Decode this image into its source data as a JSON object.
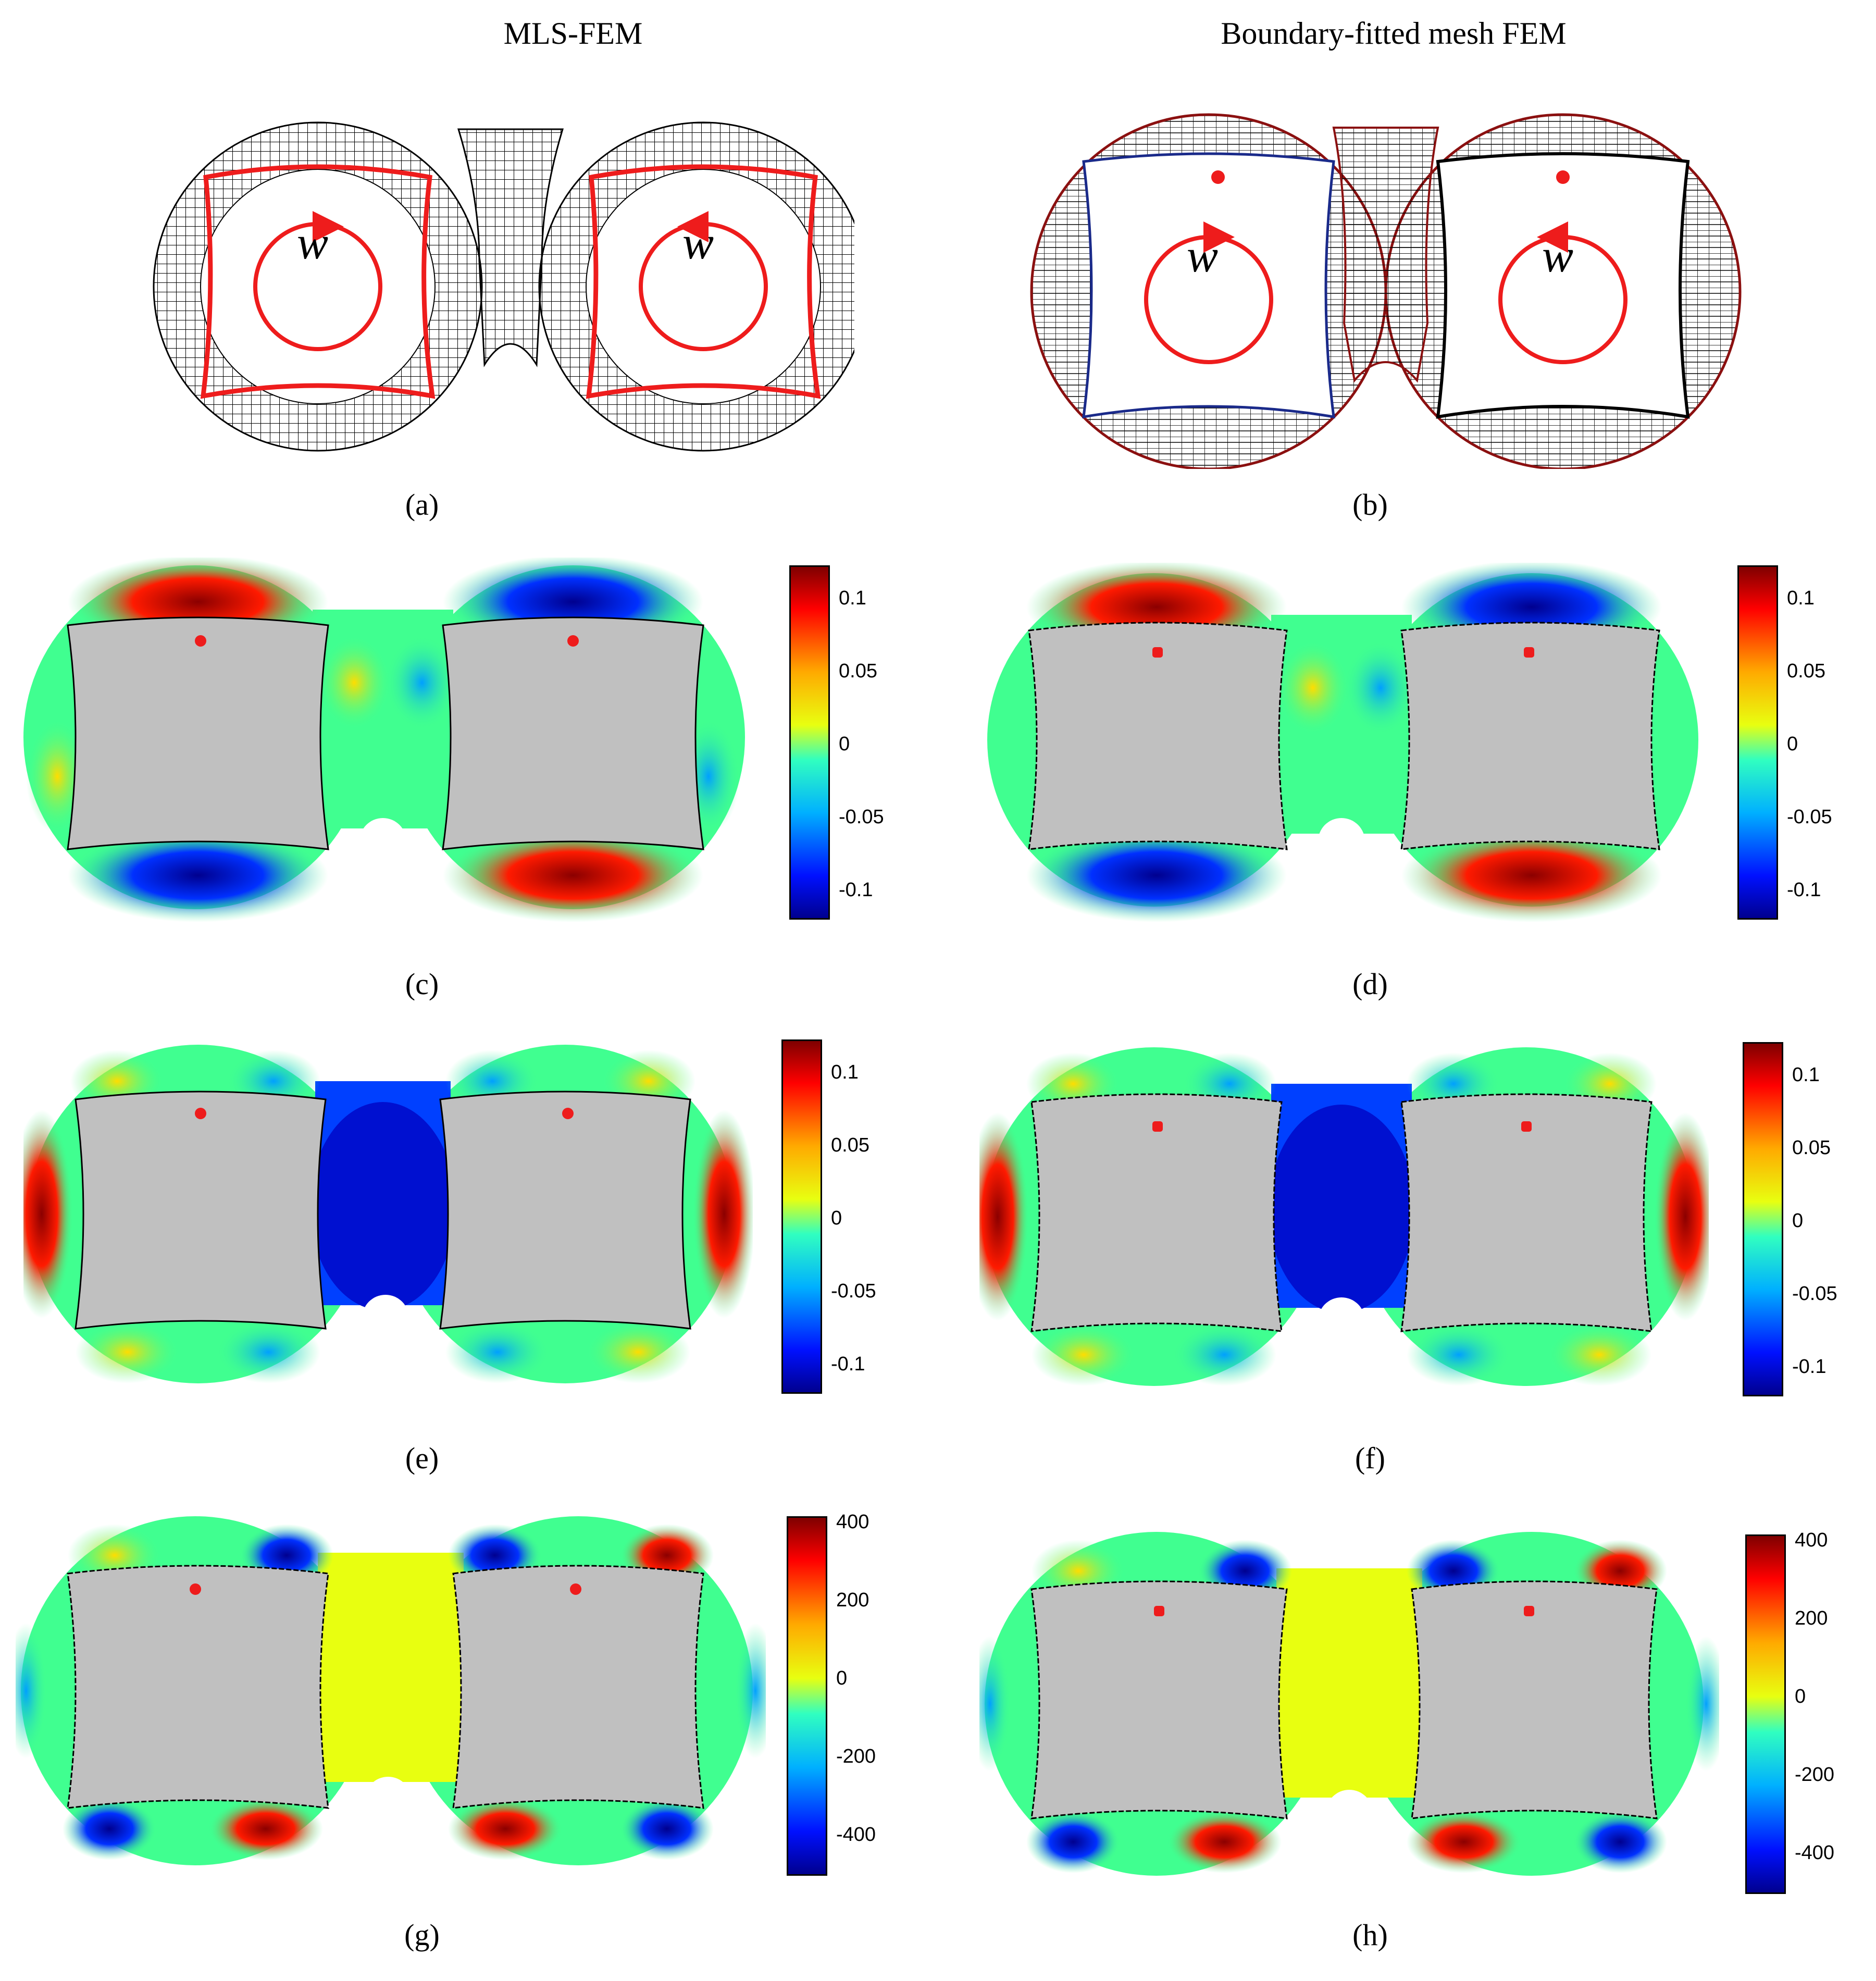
{
  "columns": {
    "left_title": "MLS-FEM",
    "right_title": "Boundary-fitted mesh FEM"
  },
  "rotation_symbol": "w",
  "panel_labels": {
    "a": "(a)",
    "b": "(b)",
    "c": "(c)",
    "d": "(d)",
    "e": "(e)",
    "f": "(f)",
    "g": "(g)",
    "h": "(h)"
  },
  "colorbars": {
    "displacement": [
      "0.1",
      "0.05",
      "0",
      "-0.05",
      "-0.1"
    ],
    "stress": [
      "400",
      "200",
      "0",
      "-200",
      "-400"
    ]
  },
  "colors": {
    "rotor_red": "#ee1c1c",
    "rotor_blue": "#1a2a8a",
    "housing_dark_red": "#8b1010",
    "rotor_gray": "#c0c0c0",
    "mesh": "#000000"
  }
}
